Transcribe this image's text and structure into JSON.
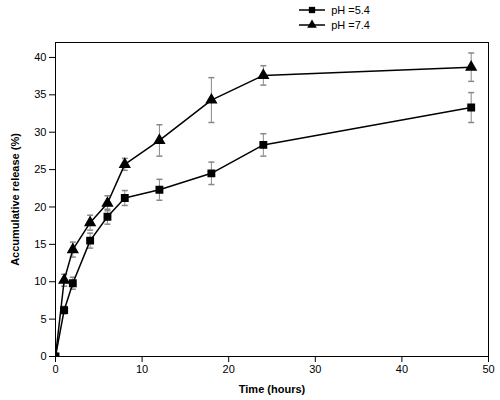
{
  "chart_data": {
    "type": "line",
    "x_label": "Time (hours)",
    "y_label": "Accumulative release (%)",
    "x": [
      0,
      1,
      2,
      4,
      6,
      8,
      12,
      18,
      24,
      48
    ],
    "series": [
      {
        "name": "pH =5.4",
        "color": "#000000",
        "marker": "square",
        "line_style": "solid",
        "values": [
          0,
          6.2,
          9.8,
          15.5,
          18.7,
          21.2,
          22.3,
          24.5,
          28.3,
          33.3
        ],
        "errors": [
          0,
          0.5,
          0.8,
          1.0,
          1.0,
          1.0,
          1.4,
          1.5,
          1.5,
          2.0
        ]
      },
      {
        "name": "pH =7.4",
        "color": "#000000",
        "marker": "triangle",
        "line_style": "solid",
        "values": [
          0,
          10.2,
          14.3,
          17.9,
          20.5,
          25.7,
          28.9,
          34.3,
          37.6,
          38.7
        ],
        "errors": [
          0,
          0.8,
          1.0,
          1.0,
          1.0,
          0.8,
          2.1,
          3.0,
          1.3,
          1.9
        ]
      }
    ],
    "xlim": [
      0,
      50
    ],
    "xticks": [
      0,
      10,
      20,
      30,
      40,
      50
    ],
    "ylim": [
      0,
      42
    ],
    "yticks": [
      0,
      5,
      10,
      15,
      20,
      25,
      30,
      35,
      40
    ],
    "grid": false,
    "legend": "top-right"
  }
}
